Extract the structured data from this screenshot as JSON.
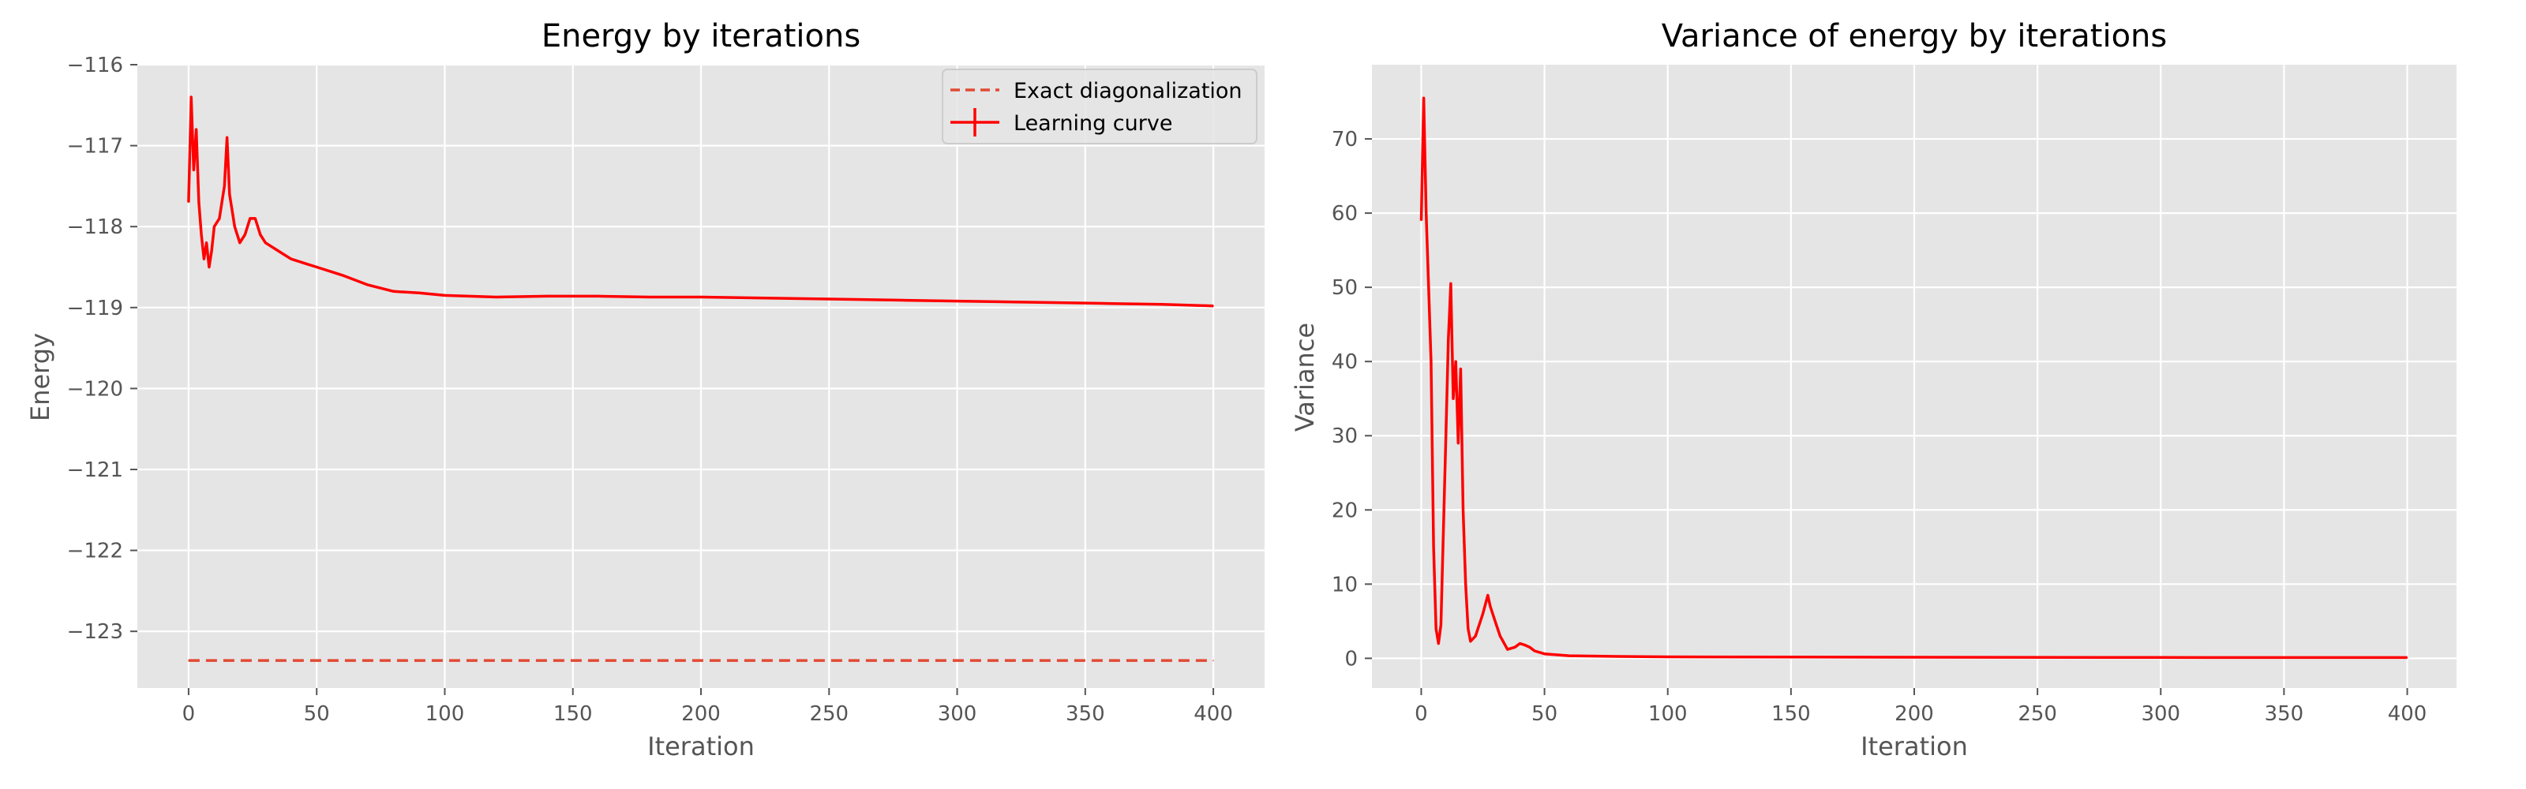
{
  "chart_data": [
    {
      "type": "line",
      "title": "Energy by iterations",
      "xlabel": "Iteration",
      "ylabel": "Energy",
      "xlim": [
        -20,
        420
      ],
      "ylim": [
        -123.7,
        -116.0
      ],
      "xticks": [
        0,
        50,
        100,
        150,
        200,
        250,
        300,
        350,
        400
      ],
      "yticks": [
        -116,
        -117,
        -118,
        -119,
        -120,
        -121,
        -122,
        -123
      ],
      "xtick_labels": [
        "0",
        "50",
        "100",
        "150",
        "200",
        "250",
        "300",
        "350",
        "400"
      ],
      "ytick_labels": [
        "−116",
        "−117",
        "−118",
        "−119",
        "−120",
        "−121",
        "−122",
        "−123"
      ],
      "grid": true,
      "legend": "top-right",
      "series": [
        {
          "name": "Exact diagonalization",
          "style": "dashed",
          "color": "#e24a33",
          "x": [
            0,
            400
          ],
          "y": [
            -123.36,
            -123.36
          ]
        },
        {
          "name": "Learning curve",
          "style": "solid-errorbar",
          "color": "#ff0000",
          "x": [
            0,
            1,
            2,
            3,
            4,
            5,
            6,
            7,
            8,
            9,
            10,
            12,
            14,
            15,
            16,
            18,
            20,
            22,
            24,
            26,
            28,
            30,
            35,
            40,
            45,
            50,
            60,
            70,
            80,
            90,
            100,
            120,
            140,
            160,
            180,
            200,
            220,
            240,
            260,
            280,
            300,
            320,
            340,
            360,
            380,
            400
          ],
          "y": [
            -117.7,
            -116.4,
            -117.3,
            -116.8,
            -117.7,
            -118.1,
            -118.4,
            -118.2,
            -118.5,
            -118.3,
            -118.0,
            -117.9,
            -117.5,
            -116.9,
            -117.6,
            -118.0,
            -118.2,
            -118.1,
            -117.9,
            -117.9,
            -118.1,
            -118.2,
            -118.3,
            -118.4,
            -118.45,
            -118.5,
            -118.6,
            -118.72,
            -118.8,
            -118.82,
            -118.85,
            -118.87,
            -118.86,
            -118.86,
            -118.87,
            -118.87,
            -118.88,
            -118.89,
            -118.9,
            -118.91,
            -118.92,
            -118.93,
            -118.94,
            -118.95,
            -118.96,
            -118.98
          ]
        }
      ]
    },
    {
      "type": "line",
      "title": "Variance of energy by iterations",
      "xlabel": "Iteration",
      "ylabel": "Variance",
      "xlim": [
        -20,
        420
      ],
      "ylim": [
        -4,
        80
      ],
      "xticks": [
        0,
        50,
        100,
        150,
        200,
        250,
        300,
        350,
        400
      ],
      "yticks": [
        0,
        10,
        20,
        30,
        40,
        50,
        60,
        70
      ],
      "xtick_labels": [
        "0",
        "50",
        "100",
        "150",
        "200",
        "250",
        "300",
        "350",
        "400"
      ],
      "ytick_labels": [
        "0",
        "10",
        "20",
        "30",
        "40",
        "50",
        "60",
        "70"
      ],
      "grid": true,
      "series": [
        {
          "color": "#ff0000",
          "x": [
            0,
            1,
            2,
            3,
            4,
            5,
            6,
            7,
            8,
            10,
            11,
            12,
            13,
            14,
            15,
            16,
            17,
            18,
            19,
            20,
            22,
            25,
            27,
            28,
            30,
            32,
            35,
            38,
            40,
            42,
            44,
            46,
            50,
            60,
            80,
            100,
            200,
            300,
            400
          ],
          "y": [
            59,
            75.5,
            60,
            50,
            40,
            15,
            4,
            2,
            4.5,
            30,
            43,
            50.5,
            35,
            40,
            29,
            39,
            20,
            10,
            4,
            2.3,
            3,
            6,
            8.5,
            7,
            5,
            3,
            1.2,
            1.5,
            2,
            1.8,
            1.5,
            1,
            0.6,
            0.35,
            0.25,
            0.2,
            0.15,
            0.12,
            0.1
          ]
        }
      ]
    }
  ]
}
